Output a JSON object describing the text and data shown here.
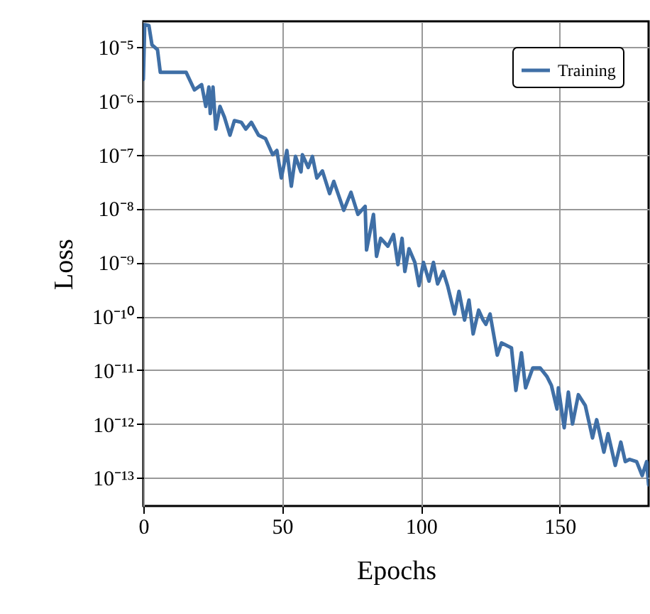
{
  "chart_data": {
    "type": "line",
    "xlabel": "Epochs",
    "ylabel": "Loss",
    "log": "y",
    "grid": true,
    "legend": "top right",
    "line_style": "solid",
    "marker": "none",
    "xlim": [
      0,
      182
    ],
    "xticks": [
      0,
      50,
      100,
      150
    ],
    "ylim": [
      3e-14,
      3e-05
    ],
    "yticks": [
      {
        "value": 1e-05,
        "label": "10⁻⁵"
      },
      {
        "value": 1e-06,
        "label": "10⁻⁶"
      },
      {
        "value": 1e-07,
        "label": "10⁻⁷"
      },
      {
        "value": 1e-08,
        "label": "10⁻⁸"
      },
      {
        "value": 1e-09,
        "label": "10⁻⁹"
      },
      {
        "value": 1e-10,
        "label": "10⁻¹⁰"
      },
      {
        "value": 1e-11,
        "label": "10⁻¹¹"
      },
      {
        "value": 1e-12,
        "label": "10⁻¹²"
      },
      {
        "value": 1e-13,
        "label": "10⁻¹³"
      }
    ],
    "series": [
      {
        "name": "Training",
        "color": "#3f6fa6",
        "x": [
          0,
          0.5,
          2.0,
          3.1,
          5.1,
          6.1,
          15.4,
          18.4,
          21.0,
          22.5,
          23.6,
          24.1,
          25.1,
          26.1,
          27.6,
          29.2,
          31.2,
          32.8,
          35.3,
          36.9,
          38.9,
          41.5,
          44.0,
          46.6,
          48.1,
          49.7,
          51.7,
          53.3,
          54.8,
          56.8,
          57.3,
          59.4,
          60.9,
          62.5,
          64.5,
          67.1,
          68.6,
          72.2,
          74.8,
          77.3,
          79.9,
          80.4,
          82.9,
          84.0,
          85.5,
          88.1,
          90.1,
          91.7,
          93.2,
          94.2,
          95.7,
          97.8,
          99.3,
          100.9,
          102.9,
          104.5,
          106.0,
          108.0,
          109.6,
          112.1,
          113.7,
          115.7,
          117.3,
          118.8,
          120.8,
          122.4,
          123.4,
          124.9,
          127.5,
          129.0,
          132.6,
          134.2,
          136.2,
          137.7,
          140.3,
          142.9,
          145.4,
          147.0,
          149.0,
          149.5,
          151.6,
          153.1,
          154.6,
          156.7,
          159.2,
          161.8,
          163.3,
          165.9,
          167.4,
          170.0,
          172.0,
          173.6,
          175.1,
          177.7,
          179.7,
          181.3,
          182
        ],
        "values": [
          2.5e-06,
          2.6e-05,
          2.5e-05,
          1.1e-05,
          8.9e-06,
          3.4e-06,
          3.4e-06,
          1.6e-06,
          2e-06,
          7.9e-07,
          1.8e-06,
          5.8e-07,
          1.8e-06,
          3e-07,
          7.9e-07,
          5e-07,
          2.3e-07,
          4.3e-07,
          4e-07,
          3e-07,
          4e-07,
          2.3e-07,
          2e-07,
          1e-07,
          1.2e-07,
          3.7e-08,
          1.2e-07,
          2.6e-08,
          9.3e-08,
          4.8e-08,
          1e-07,
          5.8e-08,
          9.3e-08,
          3.7e-08,
          5e-08,
          1.9e-08,
          3.2e-08,
          9.3e-09,
          2e-08,
          7.8e-09,
          1.1e-08,
          1.7e-09,
          7.8e-09,
          1.3e-09,
          2.8e-09,
          2e-09,
          3.3e-09,
          9.1e-10,
          2.8e-09,
          6.8e-10,
          1.8e-09,
          1e-09,
          3.7e-10,
          1e-09,
          4.5e-10,
          1e-09,
          4e-10,
          6.8e-10,
          3.7e-10,
          1.1e-10,
          2.9e-10,
          8.5e-11,
          2e-10,
          4.7e-11,
          1.3e-10,
          8.5e-11,
          7.1e-11,
          1.1e-10,
          1.9e-11,
          3.2e-11,
          2.6e-11,
          4.2e-12,
          2.1e-11,
          4.7e-12,
          1.1e-11,
          1.1e-11,
          7.6e-12,
          5.2e-12,
          1.9e-12,
          4.7e-12,
          8.5e-13,
          3.9e-12,
          1e-12,
          3.5e-12,
          2.2e-12,
          5.5e-13,
          1.2e-12,
          3e-13,
          6.6e-13,
          1.7e-13,
          4.6e-13,
          2e-13,
          2.2e-13,
          2e-13,
          1.1e-13,
          2e-13,
          7.4e-14
        ]
      }
    ]
  }
}
